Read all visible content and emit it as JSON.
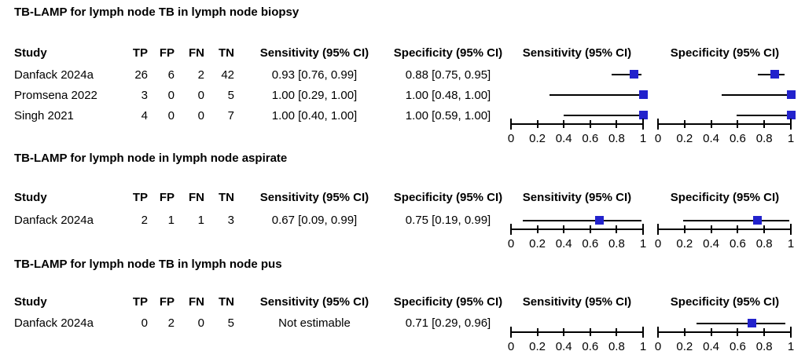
{
  "colors": {
    "marker_blue": "#2222cc",
    "line_black": "#000000",
    "text": "#000000",
    "background": "#ffffff"
  },
  "chart_data": [
    {
      "type": "forest",
      "title": "TB-LAMP for lymph node TB in lymph node biopsy",
      "columns": [
        "Study",
        "TP",
        "FP",
        "FN",
        "TN",
        "Sensitivity (95% CI)",
        "Specificity (95% CI)"
      ],
      "plot_headers": [
        "Sensitivity (95% CI)",
        "Specificity (95% CI)"
      ],
      "xlim": [
        0,
        1
      ],
      "ticks": [
        0,
        0.2,
        0.4,
        0.6,
        0.8,
        1
      ],
      "tick_labels": [
        "0",
        "0.2",
        "0.4",
        "0.6",
        "0.8",
        "1"
      ],
      "studies": [
        {
          "study": "Danfack 2024a",
          "tp": "26",
          "fp": "6",
          "fn": "2",
          "tn": "42",
          "sensitivity_text": "0.93 [0.76, 0.99]",
          "specificity_text": "0.88 [0.75, 0.95]",
          "sensitivity": {
            "estimate": 0.93,
            "ci_low": 0.76,
            "ci_high": 0.99
          },
          "specificity": {
            "estimate": 0.88,
            "ci_low": 0.75,
            "ci_high": 0.95
          }
        },
        {
          "study": "Promsena 2022",
          "tp": "3",
          "fp": "0",
          "fn": "0",
          "tn": "5",
          "sensitivity_text": "1.00 [0.29, 1.00]",
          "specificity_text": "1.00 [0.48, 1.00]",
          "sensitivity": {
            "estimate": 1.0,
            "ci_low": 0.29,
            "ci_high": 1.0
          },
          "specificity": {
            "estimate": 1.0,
            "ci_low": 0.48,
            "ci_high": 1.0
          }
        },
        {
          "study": "Singh 2021",
          "tp": "4",
          "fp": "0",
          "fn": "0",
          "tn": "7",
          "sensitivity_text": "1.00 [0.40, 1.00]",
          "specificity_text": "1.00 [0.59, 1.00]",
          "sensitivity": {
            "estimate": 1.0,
            "ci_low": 0.4,
            "ci_high": 1.0
          },
          "specificity": {
            "estimate": 1.0,
            "ci_low": 0.59,
            "ci_high": 1.0
          }
        }
      ]
    },
    {
      "type": "forest",
      "title": "TB-LAMP for lymph node in lymph node aspirate",
      "columns": [
        "Study",
        "TP",
        "FP",
        "FN",
        "TN",
        "Sensitivity (95% CI)",
        "Specificity (95% CI)"
      ],
      "plot_headers": [
        "Sensitivity (95% CI)",
        "Specificity (95% CI)"
      ],
      "xlim": [
        0,
        1
      ],
      "ticks": [
        0,
        0.2,
        0.4,
        0.6,
        0.8,
        1
      ],
      "tick_labels": [
        "0",
        "0.2",
        "0.4",
        "0.6",
        "0.8",
        "1"
      ],
      "studies": [
        {
          "study": "Danfack 2024a",
          "tp": "2",
          "fp": "1",
          "fn": "1",
          "tn": "3",
          "sensitivity_text": "0.67 [0.09, 0.99]",
          "specificity_text": "0.75 [0.19, 0.99]",
          "sensitivity": {
            "estimate": 0.67,
            "ci_low": 0.09,
            "ci_high": 0.99
          },
          "specificity": {
            "estimate": 0.75,
            "ci_low": 0.19,
            "ci_high": 0.99
          }
        }
      ]
    },
    {
      "type": "forest",
      "title": "TB-LAMP for lymph node TB in lymph node pus",
      "columns": [
        "Study",
        "TP",
        "FP",
        "FN",
        "TN",
        "Sensitivity (95% CI)",
        "Specificity (95% CI)"
      ],
      "plot_headers": [
        "Sensitivity (95% CI)",
        "Specificity (95% CI)"
      ],
      "xlim": [
        0,
        1
      ],
      "ticks": [
        0,
        0.2,
        0.4,
        0.6,
        0.8,
        1
      ],
      "tick_labels": [
        "0",
        "0.2",
        "0.4",
        "0.6",
        "0.8",
        "1"
      ],
      "studies": [
        {
          "study": "Danfack 2024a",
          "tp": "0",
          "fp": "2",
          "fn": "0",
          "tn": "5",
          "sensitivity_text": "Not estimable",
          "specificity_text": "0.71 [0.29, 0.96]",
          "sensitivity": null,
          "specificity": {
            "estimate": 0.71,
            "ci_low": 0.29,
            "ci_high": 0.96
          }
        }
      ]
    }
  ]
}
